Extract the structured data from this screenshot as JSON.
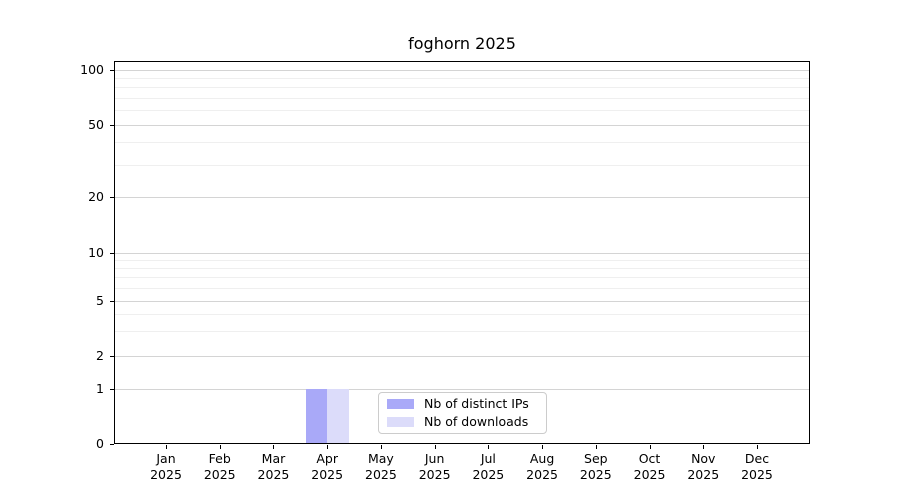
{
  "title": "foghorn 2025",
  "chart_data": {
    "type": "bar",
    "title": "foghorn 2025",
    "x_categories": [
      "Jan 2025",
      "Feb 2025",
      "Mar 2025",
      "Apr 2025",
      "May 2025",
      "Jun 2025",
      "Jul 2025",
      "Aug 2025",
      "Sep 2025",
      "Oct 2025",
      "Nov 2025",
      "Dec 2025"
    ],
    "series": [
      {
        "name": "Nb of distinct IPs",
        "color": "#a9a9f8",
        "values": [
          0,
          0,
          0,
          1,
          0,
          0,
          0,
          0,
          0,
          0,
          0,
          0
        ]
      },
      {
        "name": "Nb of downloads",
        "color": "#dcdcfa",
        "values": [
          0,
          0,
          0,
          1,
          0,
          0,
          0,
          0,
          0,
          0,
          0,
          0
        ]
      }
    ],
    "yscale": "symlog",
    "ytick_labels": [
      0,
      1,
      2,
      5,
      10,
      20,
      50,
      100
    ],
    "minor_yticks": [
      3,
      4,
      6,
      7,
      8,
      9,
      30,
      40,
      60,
      70,
      80,
      90
    ],
    "ylim": [
      0,
      112
    ],
    "grid": "both",
    "legend_position": "inside-bottom-center",
    "colors": {
      "grid_major": "#d4d4d4",
      "grid_minor": "#efefef",
      "spine": "#000000",
      "background": "#ffffff"
    }
  }
}
